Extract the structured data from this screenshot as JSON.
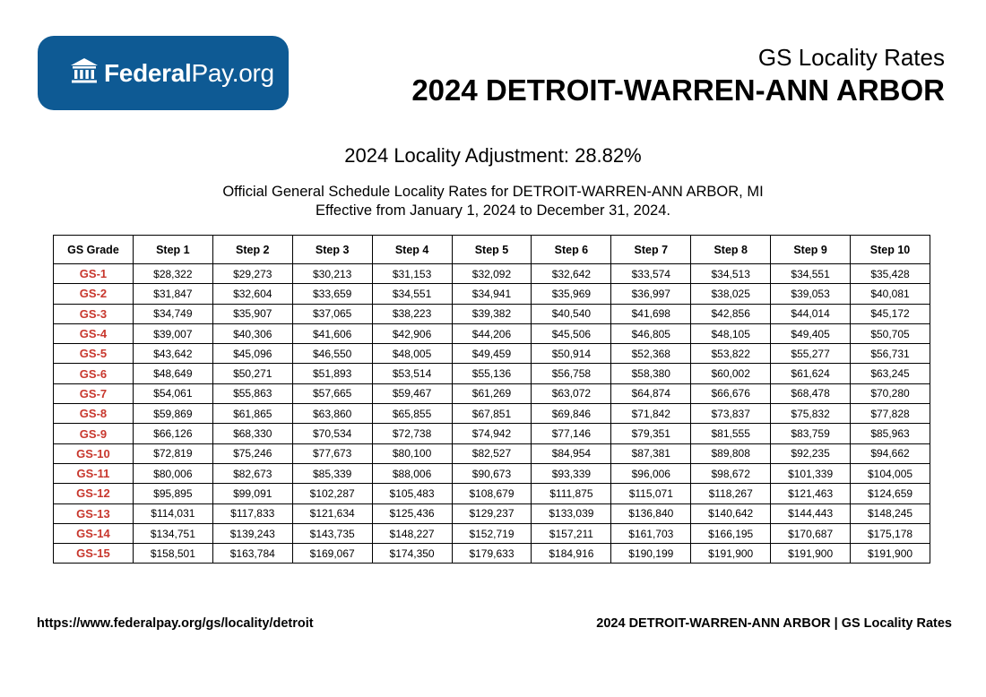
{
  "logo": {
    "icon": "bank-building-icon",
    "text_bold": "Federal",
    "text_light": "Pay.org",
    "color": "#0e5a94"
  },
  "header": {
    "subtitle": "GS Locality Rates",
    "title": "2024 DETROIT-WARREN-ANN ARBOR"
  },
  "adjustment": "2024 Locality Adjustment: 28.82%",
  "description": {
    "line1": "Official General Schedule Locality Rates for DETROIT-WARREN-ANN ARBOR, MI",
    "line2": "Effective from January 1, 2024 to December 31, 2024."
  },
  "grade_color": "#c8372d",
  "table": {
    "headers": [
      "GS Grade",
      "Step 1",
      "Step 2",
      "Step 3",
      "Step 4",
      "Step 5",
      "Step 6",
      "Step 7",
      "Step 8",
      "Step 9",
      "Step 10"
    ],
    "rows": [
      [
        "GS-1",
        "$28,322",
        "$29,273",
        "$30,213",
        "$31,153",
        "$32,092",
        "$32,642",
        "$33,574",
        "$34,513",
        "$34,551",
        "$35,428"
      ],
      [
        "GS-2",
        "$31,847",
        "$32,604",
        "$33,659",
        "$34,551",
        "$34,941",
        "$35,969",
        "$36,997",
        "$38,025",
        "$39,053",
        "$40,081"
      ],
      [
        "GS-3",
        "$34,749",
        "$35,907",
        "$37,065",
        "$38,223",
        "$39,382",
        "$40,540",
        "$41,698",
        "$42,856",
        "$44,014",
        "$45,172"
      ],
      [
        "GS-4",
        "$39,007",
        "$40,306",
        "$41,606",
        "$42,906",
        "$44,206",
        "$45,506",
        "$46,805",
        "$48,105",
        "$49,405",
        "$50,705"
      ],
      [
        "GS-5",
        "$43,642",
        "$45,096",
        "$46,550",
        "$48,005",
        "$49,459",
        "$50,914",
        "$52,368",
        "$53,822",
        "$55,277",
        "$56,731"
      ],
      [
        "GS-6",
        "$48,649",
        "$50,271",
        "$51,893",
        "$53,514",
        "$55,136",
        "$56,758",
        "$58,380",
        "$60,002",
        "$61,624",
        "$63,245"
      ],
      [
        "GS-7",
        "$54,061",
        "$55,863",
        "$57,665",
        "$59,467",
        "$61,269",
        "$63,072",
        "$64,874",
        "$66,676",
        "$68,478",
        "$70,280"
      ],
      [
        "GS-8",
        "$59,869",
        "$61,865",
        "$63,860",
        "$65,855",
        "$67,851",
        "$69,846",
        "$71,842",
        "$73,837",
        "$75,832",
        "$77,828"
      ],
      [
        "GS-9",
        "$66,126",
        "$68,330",
        "$70,534",
        "$72,738",
        "$74,942",
        "$77,146",
        "$79,351",
        "$81,555",
        "$83,759",
        "$85,963"
      ],
      [
        "GS-10",
        "$72,819",
        "$75,246",
        "$77,673",
        "$80,100",
        "$82,527",
        "$84,954",
        "$87,381",
        "$89,808",
        "$92,235",
        "$94,662"
      ],
      [
        "GS-11",
        "$80,006",
        "$82,673",
        "$85,339",
        "$88,006",
        "$90,673",
        "$93,339",
        "$96,006",
        "$98,672",
        "$101,339",
        "$104,005"
      ],
      [
        "GS-12",
        "$95,895",
        "$99,091",
        "$102,287",
        "$105,483",
        "$108,679",
        "$111,875",
        "$115,071",
        "$118,267",
        "$121,463",
        "$124,659"
      ],
      [
        "GS-13",
        "$114,031",
        "$117,833",
        "$121,634",
        "$125,436",
        "$129,237",
        "$133,039",
        "$136,840",
        "$140,642",
        "$144,443",
        "$148,245"
      ],
      [
        "GS-14",
        "$134,751",
        "$139,243",
        "$143,735",
        "$148,227",
        "$152,719",
        "$157,211",
        "$161,703",
        "$166,195",
        "$170,687",
        "$175,178"
      ],
      [
        "GS-15",
        "$158,501",
        "$163,784",
        "$169,067",
        "$174,350",
        "$179,633",
        "$184,916",
        "$190,199",
        "$191,900",
        "$191,900",
        "$191,900"
      ]
    ]
  },
  "footer": {
    "url": "https://www.federalpay.org/gs/locality/detroit",
    "right": "2024 DETROIT-WARREN-ANN ARBOR | GS Locality Rates"
  }
}
